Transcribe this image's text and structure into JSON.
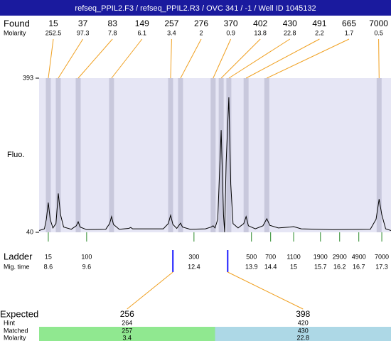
{
  "header": {
    "title": "refseq_PPIL2.F3 / refseq_PPIL2.R3 / OVC 341 / -1 / Well ID 1045132"
  },
  "row_labels": {
    "found": "Found",
    "molarity": "Molarity",
    "fluo": "Fluo.",
    "ladder": "Ladder",
    "mig_time": "Mig. time",
    "expected": "Expected",
    "hint": "Hint",
    "matched": "Matched",
    "matched_molarity": "Molarity"
  },
  "chart_data": {
    "type": "electropherogram",
    "xlim": [
      8.36,
      17.54
    ],
    "ylim": [
      40,
      393
    ],
    "yticks": [
      40,
      393
    ],
    "peaks": [
      {
        "size": 15,
        "molarity": 252.5,
        "migration_time": 8.6
      },
      {
        "size": 37,
        "molarity": 97.3,
        "migration_time": 8.86
      },
      {
        "size": 83,
        "molarity": 7.8,
        "migration_time": 9.38
      },
      {
        "size": 149,
        "molarity": 6.1,
        "migration_time": 10.25
      },
      {
        "size": 257,
        "molarity": 3.4,
        "migration_time": 11.79
      },
      {
        "size": 276,
        "molarity": 2,
        "migration_time": 12.05
      },
      {
        "size": 370,
        "molarity": 0.9,
        "migration_time": 12.9
      },
      {
        "size": 402,
        "molarity": 13.8,
        "migration_time": 13.11
      },
      {
        "size": 430,
        "molarity": 22.8,
        "migration_time": 13.31
      },
      {
        "size": 491,
        "molarity": 2.2,
        "migration_time": 13.76
      },
      {
        "size": 665,
        "molarity": 1.7,
        "migration_time": 14.3
      },
      {
        "size": 7000,
        "molarity": 0.5,
        "migration_time": 17.23
      }
    ],
    "ladder": [
      {
        "size": 15,
        "migration_time": 8.6
      },
      {
        "size": 100,
        "migration_time": 9.6
      },
      {
        "size": 300,
        "migration_time": 12.4
      },
      {
        "size": 500,
        "migration_time": 13.9
      },
      {
        "size": 700,
        "migration_time": 14.4
      },
      {
        "size": 1100,
        "migration_time": 15
      },
      {
        "size": 1900,
        "migration_time": 15.7
      },
      {
        "size": 2900,
        "migration_time": 16.2
      },
      {
        "size": 4900,
        "migration_time": 16.7
      },
      {
        "size": 7000,
        "migration_time": 17.3
      }
    ],
    "expected": [
      {
        "size": 256,
        "hint": 264,
        "matched": 257,
        "molarity": 3.4,
        "migration_time": 11.85,
        "color": "#90e890"
      },
      {
        "size": 398,
        "hint": 420,
        "matched": 430,
        "molarity": 22.8,
        "migration_time": 13.28,
        "color": "#add8e6"
      }
    ],
    "trace": {
      "color": "#000000",
      "x": [
        8.36,
        8.5,
        8.55,
        8.6,
        8.65,
        8.72,
        8.8,
        8.86,
        8.92,
        9.0,
        9.2,
        9.33,
        9.38,
        9.43,
        9.6,
        10.1,
        10.2,
        10.25,
        10.3,
        10.45,
        10.7,
        10.75,
        10.8,
        11.6,
        11.73,
        11.79,
        11.85,
        11.95,
        12.0,
        12.05,
        12.1,
        12.3,
        12.7,
        12.85,
        12.9,
        12.95,
        13.02,
        13.11,
        13.17,
        13.2,
        13.24,
        13.31,
        13.36,
        13.42,
        13.55,
        13.7,
        13.76,
        13.82,
        14.0,
        14.2,
        14.3,
        14.38,
        14.6,
        14.9,
        15.0,
        15.2,
        16.0,
        17.0,
        17.15,
        17.23,
        17.3,
        17.4,
        17.54
      ],
      "y": [
        44,
        48,
        70,
        108,
        70,
        50,
        60,
        129,
        80,
        52,
        47,
        55,
        64,
        52,
        46,
        47,
        60,
        76,
        58,
        47,
        49,
        51,
        48,
        48,
        60,
        79,
        58,
        49,
        55,
        61,
        52,
        47,
        48,
        52,
        55,
        50,
        70,
        274,
        80,
        40,
        200,
        349,
        150,
        60,
        50,
        60,
        76,
        55,
        48,
        55,
        71,
        56,
        50,
        52,
        53,
        48,
        46,
        47,
        70,
        116,
        80,
        48,
        44
      ]
    }
  }
}
